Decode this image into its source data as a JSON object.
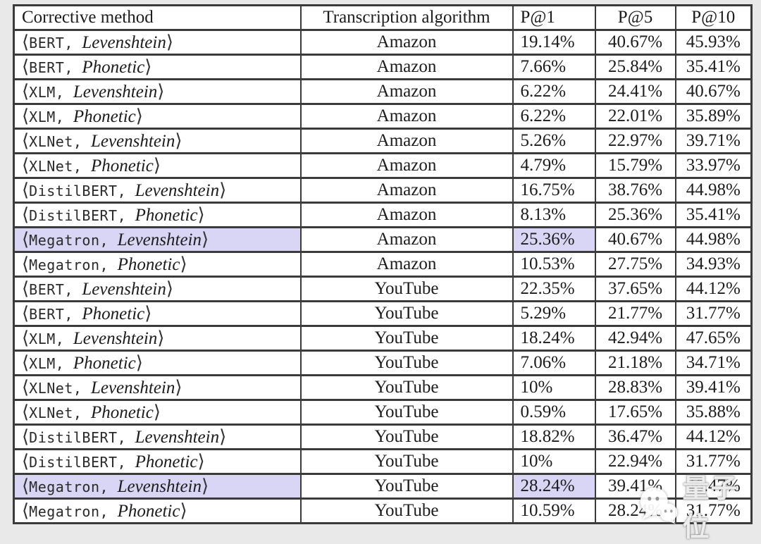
{
  "page": {
    "background": "#e9e9e9"
  },
  "table": {
    "bracket_open": "⟨",
    "bracket_close": "⟩",
    "separator": ",",
    "highlight_color": "#d8d6f4",
    "header": {
      "corrective_method": "Corrective method",
      "transcription_algorithm": "Transcription algorithm",
      "p_at_1": "P@1",
      "p_at_5": "P@5",
      "p_at_10": "P@10"
    },
    "rows": [
      {
        "model": "BERT",
        "metric": "Levenshtein",
        "algorithm": "Amazon",
        "p1": "19.14%",
        "p5": "40.67%",
        "p10": "45.93%",
        "highlight_method": false,
        "highlight_p1": false
      },
      {
        "model": "BERT",
        "metric": "Phonetic",
        "algorithm": "Amazon",
        "p1": "7.66%",
        "p5": "25.84%",
        "p10": "35.41%",
        "highlight_method": false,
        "highlight_p1": false
      },
      {
        "model": "XLM",
        "metric": "Levenshtein",
        "algorithm": "Amazon",
        "p1": "6.22%",
        "p5": "24.41%",
        "p10": "40.67%",
        "highlight_method": false,
        "highlight_p1": false
      },
      {
        "model": "XLM",
        "metric": "Phonetic",
        "algorithm": "Amazon",
        "p1": "6.22%",
        "p5": "22.01%",
        "p10": "35.89%",
        "highlight_method": false,
        "highlight_p1": false
      },
      {
        "model": "XLNet",
        "metric": "Levenshtein",
        "algorithm": "Amazon",
        "p1": "5.26%",
        "p5": "22.97%",
        "p10": "39.71%",
        "highlight_method": false,
        "highlight_p1": false
      },
      {
        "model": "XLNet",
        "metric": "Phonetic",
        "algorithm": "Amazon",
        "p1": "4.79%",
        "p5": "15.79%",
        "p10": "33.97%",
        "highlight_method": false,
        "highlight_p1": false
      },
      {
        "model": "DistilBERT",
        "metric": "Levenshtein",
        "algorithm": "Amazon",
        "p1": "16.75%",
        "p5": "38.76%",
        "p10": "44.98%",
        "highlight_method": false,
        "highlight_p1": false
      },
      {
        "model": "DistilBERT",
        "metric": "Phonetic",
        "algorithm": "Amazon",
        "p1": "8.13%",
        "p5": "25.36%",
        "p10": "35.41%",
        "highlight_method": false,
        "highlight_p1": false
      },
      {
        "model": "Megatron",
        "metric": "Levenshtein",
        "algorithm": "Amazon",
        "p1": "25.36%",
        "p5": "40.67%",
        "p10": "44.98%",
        "highlight_method": true,
        "highlight_p1": true
      },
      {
        "model": "Megatron",
        "metric": "Phonetic",
        "algorithm": "Amazon",
        "p1": "10.53%",
        "p5": "27.75%",
        "p10": "34.93%",
        "highlight_method": false,
        "highlight_p1": false
      },
      {
        "model": "BERT",
        "metric": "Levenshtein",
        "algorithm": "YouTube",
        "p1": "22.35%",
        "p5": "37.65%",
        "p10": "44.12%",
        "highlight_method": false,
        "highlight_p1": false
      },
      {
        "model": "BERT",
        "metric": "Phonetic",
        "algorithm": "YouTube",
        "p1": "5.29%",
        "p5": "21.77%",
        "p10": "31.77%",
        "highlight_method": false,
        "highlight_p1": false
      },
      {
        "model": "XLM",
        "metric": "Levenshtein",
        "algorithm": "YouTube",
        "p1": "18.24%",
        "p5": "42.94%",
        "p10": "47.65%",
        "highlight_method": false,
        "highlight_p1": false
      },
      {
        "model": "XLM",
        "metric": "Phonetic",
        "algorithm": "YouTube",
        "p1": "7.06%",
        "p5": "21.18%",
        "p10": "34.71%",
        "highlight_method": false,
        "highlight_p1": false
      },
      {
        "model": "XLNet",
        "metric": "Levenshtein",
        "algorithm": "YouTube",
        "p1": "10%",
        "p5": "28.83%",
        "p10": "39.41%",
        "highlight_method": false,
        "highlight_p1": false
      },
      {
        "model": "XLNet",
        "metric": "Phonetic",
        "algorithm": "YouTube",
        "p1": "0.59%",
        "p5": "17.65%",
        "p10": "35.88%",
        "highlight_method": false,
        "highlight_p1": false
      },
      {
        "model": "DistilBERT",
        "metric": "Levenshtein",
        "algorithm": "YouTube",
        "p1": "18.82%",
        "p5": "36.47%",
        "p10": "44.12%",
        "highlight_method": false,
        "highlight_p1": false
      },
      {
        "model": "DistilBERT",
        "metric": "Phonetic",
        "algorithm": "YouTube",
        "p1": "10%",
        "p5": "22.94%",
        "p10": "31.77%",
        "highlight_method": false,
        "highlight_p1": false
      },
      {
        "model": "Megatron",
        "metric": "Levenshtein",
        "algorithm": "YouTube",
        "p1": "28.24%",
        "p5": "39.41%",
        "p10": "46.47%",
        "highlight_method": true,
        "highlight_p1": true
      },
      {
        "model": "Megatron",
        "metric": "Phonetic",
        "algorithm": "YouTube",
        "p1": "10.59%",
        "p5": "28.24%",
        "p10": "31.77%",
        "highlight_method": false,
        "highlight_p1": false
      }
    ]
  },
  "watermark": {
    "text": "量子位",
    "icon": "wechat-bubbles-icon"
  }
}
